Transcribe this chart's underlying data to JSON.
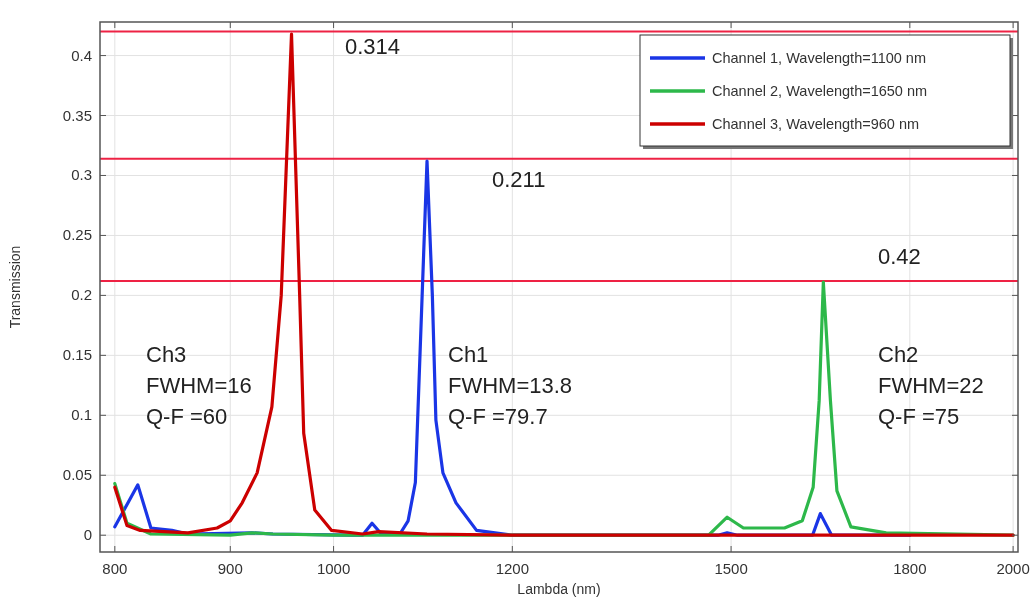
{
  "chart_data": {
    "type": "line",
    "xlabel": "Lambda (nm)",
    "ylabel": "Transmission",
    "log": "x",
    "xlim": [
      788,
      2010
    ],
    "ylim": [
      -0.014,
      0.428
    ],
    "xticks": [
      800,
      900,
      1000,
      1200,
      1500,
      1800,
      2000
    ],
    "yticks": [
      0,
      0.05,
      0.1,
      0.15,
      0.2,
      0.25,
      0.3,
      0.35,
      0.4
    ],
    "grid": true,
    "legend": "top right",
    "marker": "none",
    "line_style": "solid",
    "series": [
      {
        "name": "Channel 1, Wavelength=1100 nm",
        "color": "#1a35e6",
        "x": [
          800,
          819,
          830,
          848,
          862,
          920,
          940,
          1020,
          1030,
          1040,
          1050,
          1070,
          1079,
          1087,
          1100,
          1106,
          1110,
          1118,
          1133,
          1157,
          1200,
          1480,
          1494,
          1510,
          1630,
          1643,
          1662,
          1800
        ],
        "values": [
          0.007,
          0.042,
          0.006,
          0.004,
          0.001,
          0.002,
          0.001,
          0,
          0,
          0.01,
          0.001,
          0.001,
          0.012,
          0.044,
          0.312,
          0.2,
          0.096,
          0.052,
          0.027,
          0.004,
          0,
          0,
          0.002,
          0,
          0,
          0.018,
          0,
          0
        ]
      },
      {
        "name": "Channel 2, Wavelength=1650 nm",
        "color": "#2db84a",
        "x": [
          800,
          810,
          830,
          900,
          920,
          940,
          1000,
          1200,
          1466,
          1494,
          1519,
          1584,
          1613,
          1631,
          1641,
          1648,
          1660,
          1671,
          1695,
          1757,
          2000
        ],
        "values": [
          0.043,
          0.01,
          0.001,
          0,
          0.002,
          0.001,
          0,
          0,
          0,
          0.015,
          0.006,
          0.006,
          0.012,
          0.04,
          0.112,
          0.211,
          0.112,
          0.037,
          0.007,
          0.002,
          0
        ]
      },
      {
        "name": "Channel 3, Wavelength=960 nm",
        "color": "#cc0000",
        "x": [
          800,
          810,
          821,
          862,
          888,
          900,
          911,
          925,
          939,
          948,
          958,
          966,
          970,
          981,
          998,
          1030,
          1047,
          1100,
          1200,
          2000
        ],
        "values": [
          0.04,
          0.008,
          0.004,
          0.002,
          0.006,
          0.012,
          0.027,
          0.052,
          0.107,
          0.2,
          0.418,
          0.2,
          0.085,
          0.021,
          0.004,
          0.001,
          0.003,
          0.001,
          0,
          0
        ]
      }
    ],
    "ref_lines": [
      {
        "axis": "y",
        "value": 0.42,
        "color": "#ee2244"
      },
      {
        "axis": "y",
        "value": 0.314,
        "color": "#ee2244"
      },
      {
        "axis": "y",
        "value": 0.212,
        "color": "#ee2244"
      }
    ],
    "annotations": [
      "0.314",
      "0.211",
      "0.42",
      "Ch3\nFWHM=16\nQ-F =60",
      "Ch1\nFWHM=13.8\nQ-F =79.7",
      "Ch2\nFWHM=22\nQ-F =75"
    ]
  }
}
